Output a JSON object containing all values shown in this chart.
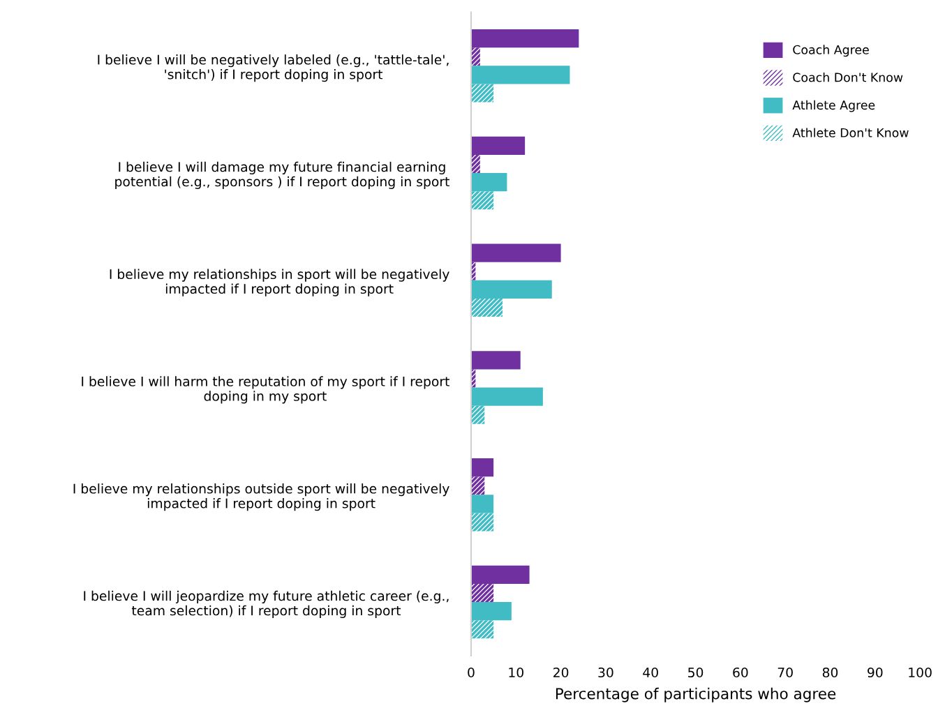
{
  "chart_data": {
    "type": "bar",
    "orientation": "horizontal",
    "xlabel": "Percentage of participants who agree",
    "categories": [
      "I believe I will be negatively labeled (e.g., 'tattle-tale', 'snitch') if I report doping in sport",
      "I believe I will damage my future financial earning potential (e.g., sponsors ) if I report doping in sport",
      "I believe my relationships in sport will be negatively impacted if I report doping in sport",
      "I believe I will harm the reputation of my sport if I report doping in my sport",
      "I believe my relationships outside sport will be negatively impacted if I report doping in sport",
      "I believe I will jeopardize my future athletic career (e.g., team selection) if I report doping in sport"
    ],
    "series": [
      {
        "name": "Coach Agree",
        "color": "#7030a0",
        "values": [
          24,
          12,
          20,
          11,
          5,
          13
        ]
      },
      {
        "name": "Coach Don't Know",
        "color": "#7030a0",
        "values": [
          2,
          2,
          1,
          1,
          3,
          5
        ]
      },
      {
        "name": "Athlete Agree",
        "color": "#42bcc4",
        "values": [
          22,
          8,
          18,
          16,
          5,
          9
        ]
      },
      {
        "name": "Athlete Don't Know",
        "color": "#42bcc4",
        "values": [
          5,
          5,
          7,
          3,
          5,
          5
        ]
      }
    ],
    "xlim": [
      0,
      100
    ],
    "xticks": [
      0,
      10,
      20,
      30,
      40,
      50,
      60,
      70,
      80,
      90,
      100
    ],
    "grid": false,
    "legend": "top right"
  }
}
